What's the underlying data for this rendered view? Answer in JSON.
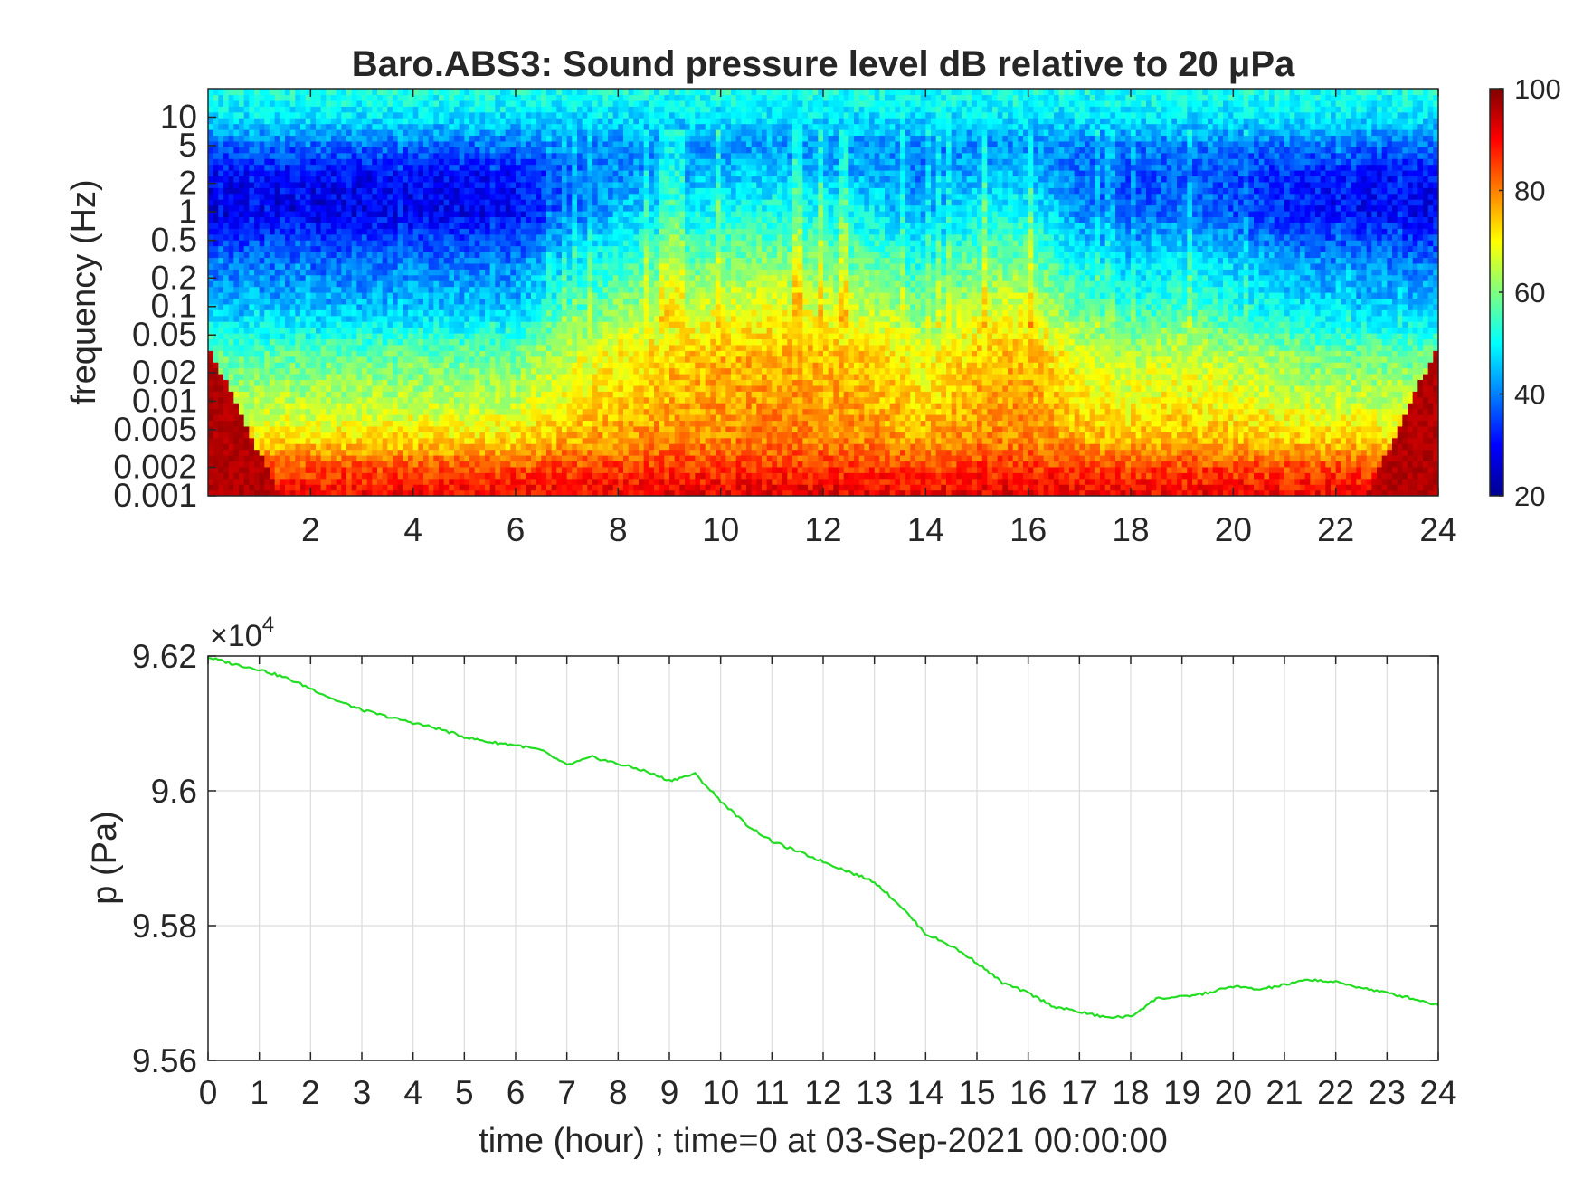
{
  "chart_data": [
    {
      "type": "heatmap",
      "title": "Baro.ABS3: Sound pressure level dB relative to 20 μPa",
      "ylabel": "frequency (Hz)",
      "xlabel": "",
      "x_ticks": [
        2,
        4,
        6,
        8,
        10,
        12,
        14,
        16,
        18,
        20,
        22,
        24
      ],
      "y_ticks": [
        {
          "value": 0.001,
          "label": "0.001"
        },
        {
          "value": 0.002,
          "label": "0.002"
        },
        {
          "value": 0.005,
          "label": "0.005"
        },
        {
          "value": 0.01,
          "label": "0.01"
        },
        {
          "value": 0.02,
          "label": "0.02"
        },
        {
          "value": 0.05,
          "label": "0.05"
        },
        {
          "value": 0.1,
          "label": "0.1"
        },
        {
          "value": 0.2,
          "label": "0.2"
        },
        {
          "value": 0.5,
          "label": "0.5"
        },
        {
          "value": 1,
          "label": "1"
        },
        {
          "value": 2,
          "label": "2"
        },
        {
          "value": 5,
          "label": "5"
        },
        {
          "value": 10,
          "label": "10"
        }
      ],
      "xlim": [
        0,
        24
      ],
      "ylim": [
        0.001,
        20
      ],
      "y_scale": "log",
      "colorbar": {
        "colormap": "jet",
        "clim": [
          20,
          100
        ],
        "ticks": [
          20,
          40,
          60,
          80,
          100
        ],
        "placement": "right"
      },
      "times_hr": [
        0,
        2,
        4,
        6,
        7,
        8,
        9,
        10,
        11,
        12,
        13,
        14,
        15,
        16,
        17,
        18,
        19,
        20,
        21,
        22,
        24
      ],
      "activity": [
        0.0,
        0.0,
        0.05,
        0.05,
        0.45,
        0.7,
        0.85,
        0.95,
        1.0,
        0.95,
        0.85,
        0.6,
        0.9,
        0.95,
        0.55,
        0.35,
        0.5,
        0.35,
        0.2,
        0.1,
        0.05
      ],
      "level_profile_db": {
        "log10_freq": [
          -3.0,
          -2.7,
          -2.4,
          -2.0,
          -1.5,
          -1.0,
          -0.5,
          0.0,
          0.4,
          0.7,
          1.0,
          1.3
        ],
        "quiet": [
          90,
          84,
          72,
          64,
          57,
          44,
          38,
          28,
          30,
          38,
          48,
          52
        ],
        "active": [
          92,
          86,
          80,
          78,
          76,
          68,
          60,
          52,
          46,
          42,
          48,
          52
        ]
      }
    },
    {
      "type": "line",
      "xlabel": "time (hour) ; time=0 at 03-Sep-2021 00:00:00",
      "ylabel": "p (Pa)",
      "y_exponent_label": "×10",
      "y_exponent": "4",
      "xlim": [
        0,
        24
      ],
      "ylim": [
        95600,
        96200
      ],
      "x_ticks": [
        0,
        1,
        2,
        3,
        4,
        5,
        6,
        7,
        8,
        9,
        10,
        11,
        12,
        13,
        14,
        15,
        16,
        17,
        18,
        19,
        20,
        21,
        22,
        23,
        24
      ],
      "y_ticks": [
        {
          "value": 95600,
          "label": "9.56"
        },
        {
          "value": 95800,
          "label": "9.58"
        },
        {
          "value": 96000,
          "label": "9.6"
        },
        {
          "value": 96200,
          "label": "9.62"
        }
      ],
      "grid": true,
      "line_color": "#22dd22",
      "series": [
        {
          "x": [
            0,
            0.5,
            1,
            1.5,
            2,
            2.5,
            3,
            3.5,
            4,
            4.5,
            5,
            5.5,
            6,
            6.5,
            7,
            7.5,
            8,
            8.5,
            9,
            9.5,
            10,
            10.5,
            11,
            11.5,
            12,
            12.5,
            13,
            13.5,
            14,
            14.5,
            15,
            15.5,
            16,
            16.5,
            17,
            17.5,
            18,
            18.5,
            19,
            19.5,
            20,
            20.5,
            21,
            21.5,
            22,
            22.5,
            23,
            23.5,
            24
          ],
          "y": [
            96198,
            96188,
            96180,
            96168,
            96152,
            96134,
            96120,
            96110,
            96101,
            96092,
            96080,
            96072,
            96068,
            96060,
            96038,
            96050,
            96040,
            96030,
            96015,
            96025,
            95985,
            95950,
            95925,
            95910,
            95895,
            95880,
            95865,
            95830,
            95788,
            95770,
            95745,
            95715,
            95700,
            95680,
            95672,
            95664,
            95665,
            95692,
            95694,
            95700,
            95710,
            95705,
            95712,
            95720,
            95716,
            95708,
            95700,
            95692,
            95682
          ]
        }
      ]
    }
  ]
}
